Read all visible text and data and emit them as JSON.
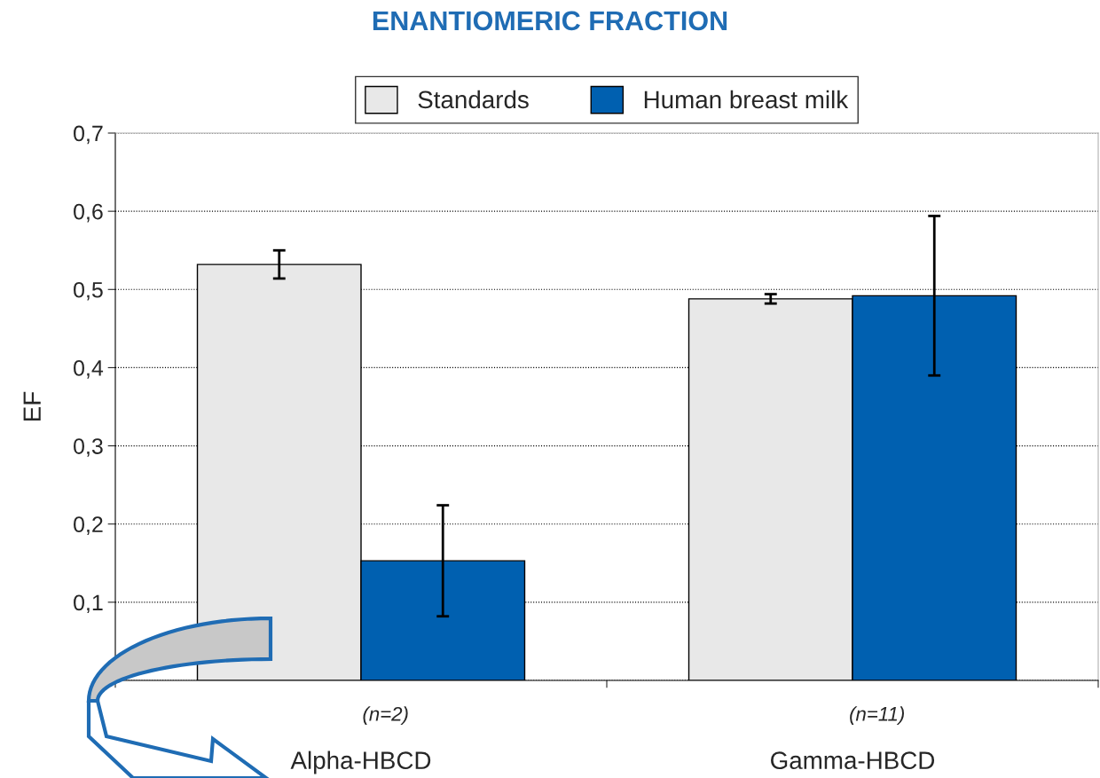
{
  "chart_data": {
    "type": "bar",
    "title": "ENANTIOMERIC FRACTION",
    "ylabel": "EF",
    "categories": [
      "Alpha-HBCD",
      "Gamma-HBCD"
    ],
    "series": [
      {
        "name": "Standards",
        "color": "#e8e8e8",
        "values": [
          0.532,
          0.488
        ],
        "errors": [
          0.018,
          0.006
        ]
      },
      {
        "name": "Human breast milk",
        "color": "#0060b0",
        "values": [
          0.153,
          0.492
        ],
        "errors": [
          0.071,
          0.102
        ]
      }
    ],
    "ylim": [
      0,
      0.7
    ],
    "yticks": [
      {
        "value": 0,
        "label": null
      },
      {
        "value": 0.1,
        "label": "0,1"
      },
      {
        "value": 0.2,
        "label": "0,2"
      },
      {
        "value": 0.3,
        "label": "0,3"
      },
      {
        "value": 0.4,
        "label": "0,4"
      },
      {
        "value": 0.5,
        "label": "0,5"
      },
      {
        "value": 0.6,
        "label": "0,6"
      },
      {
        "value": 0.7,
        "label": "0,7"
      }
    ],
    "grid": "y",
    "legend": "top",
    "annotations": [
      "(n=2)",
      "(n=11)"
    ]
  }
}
